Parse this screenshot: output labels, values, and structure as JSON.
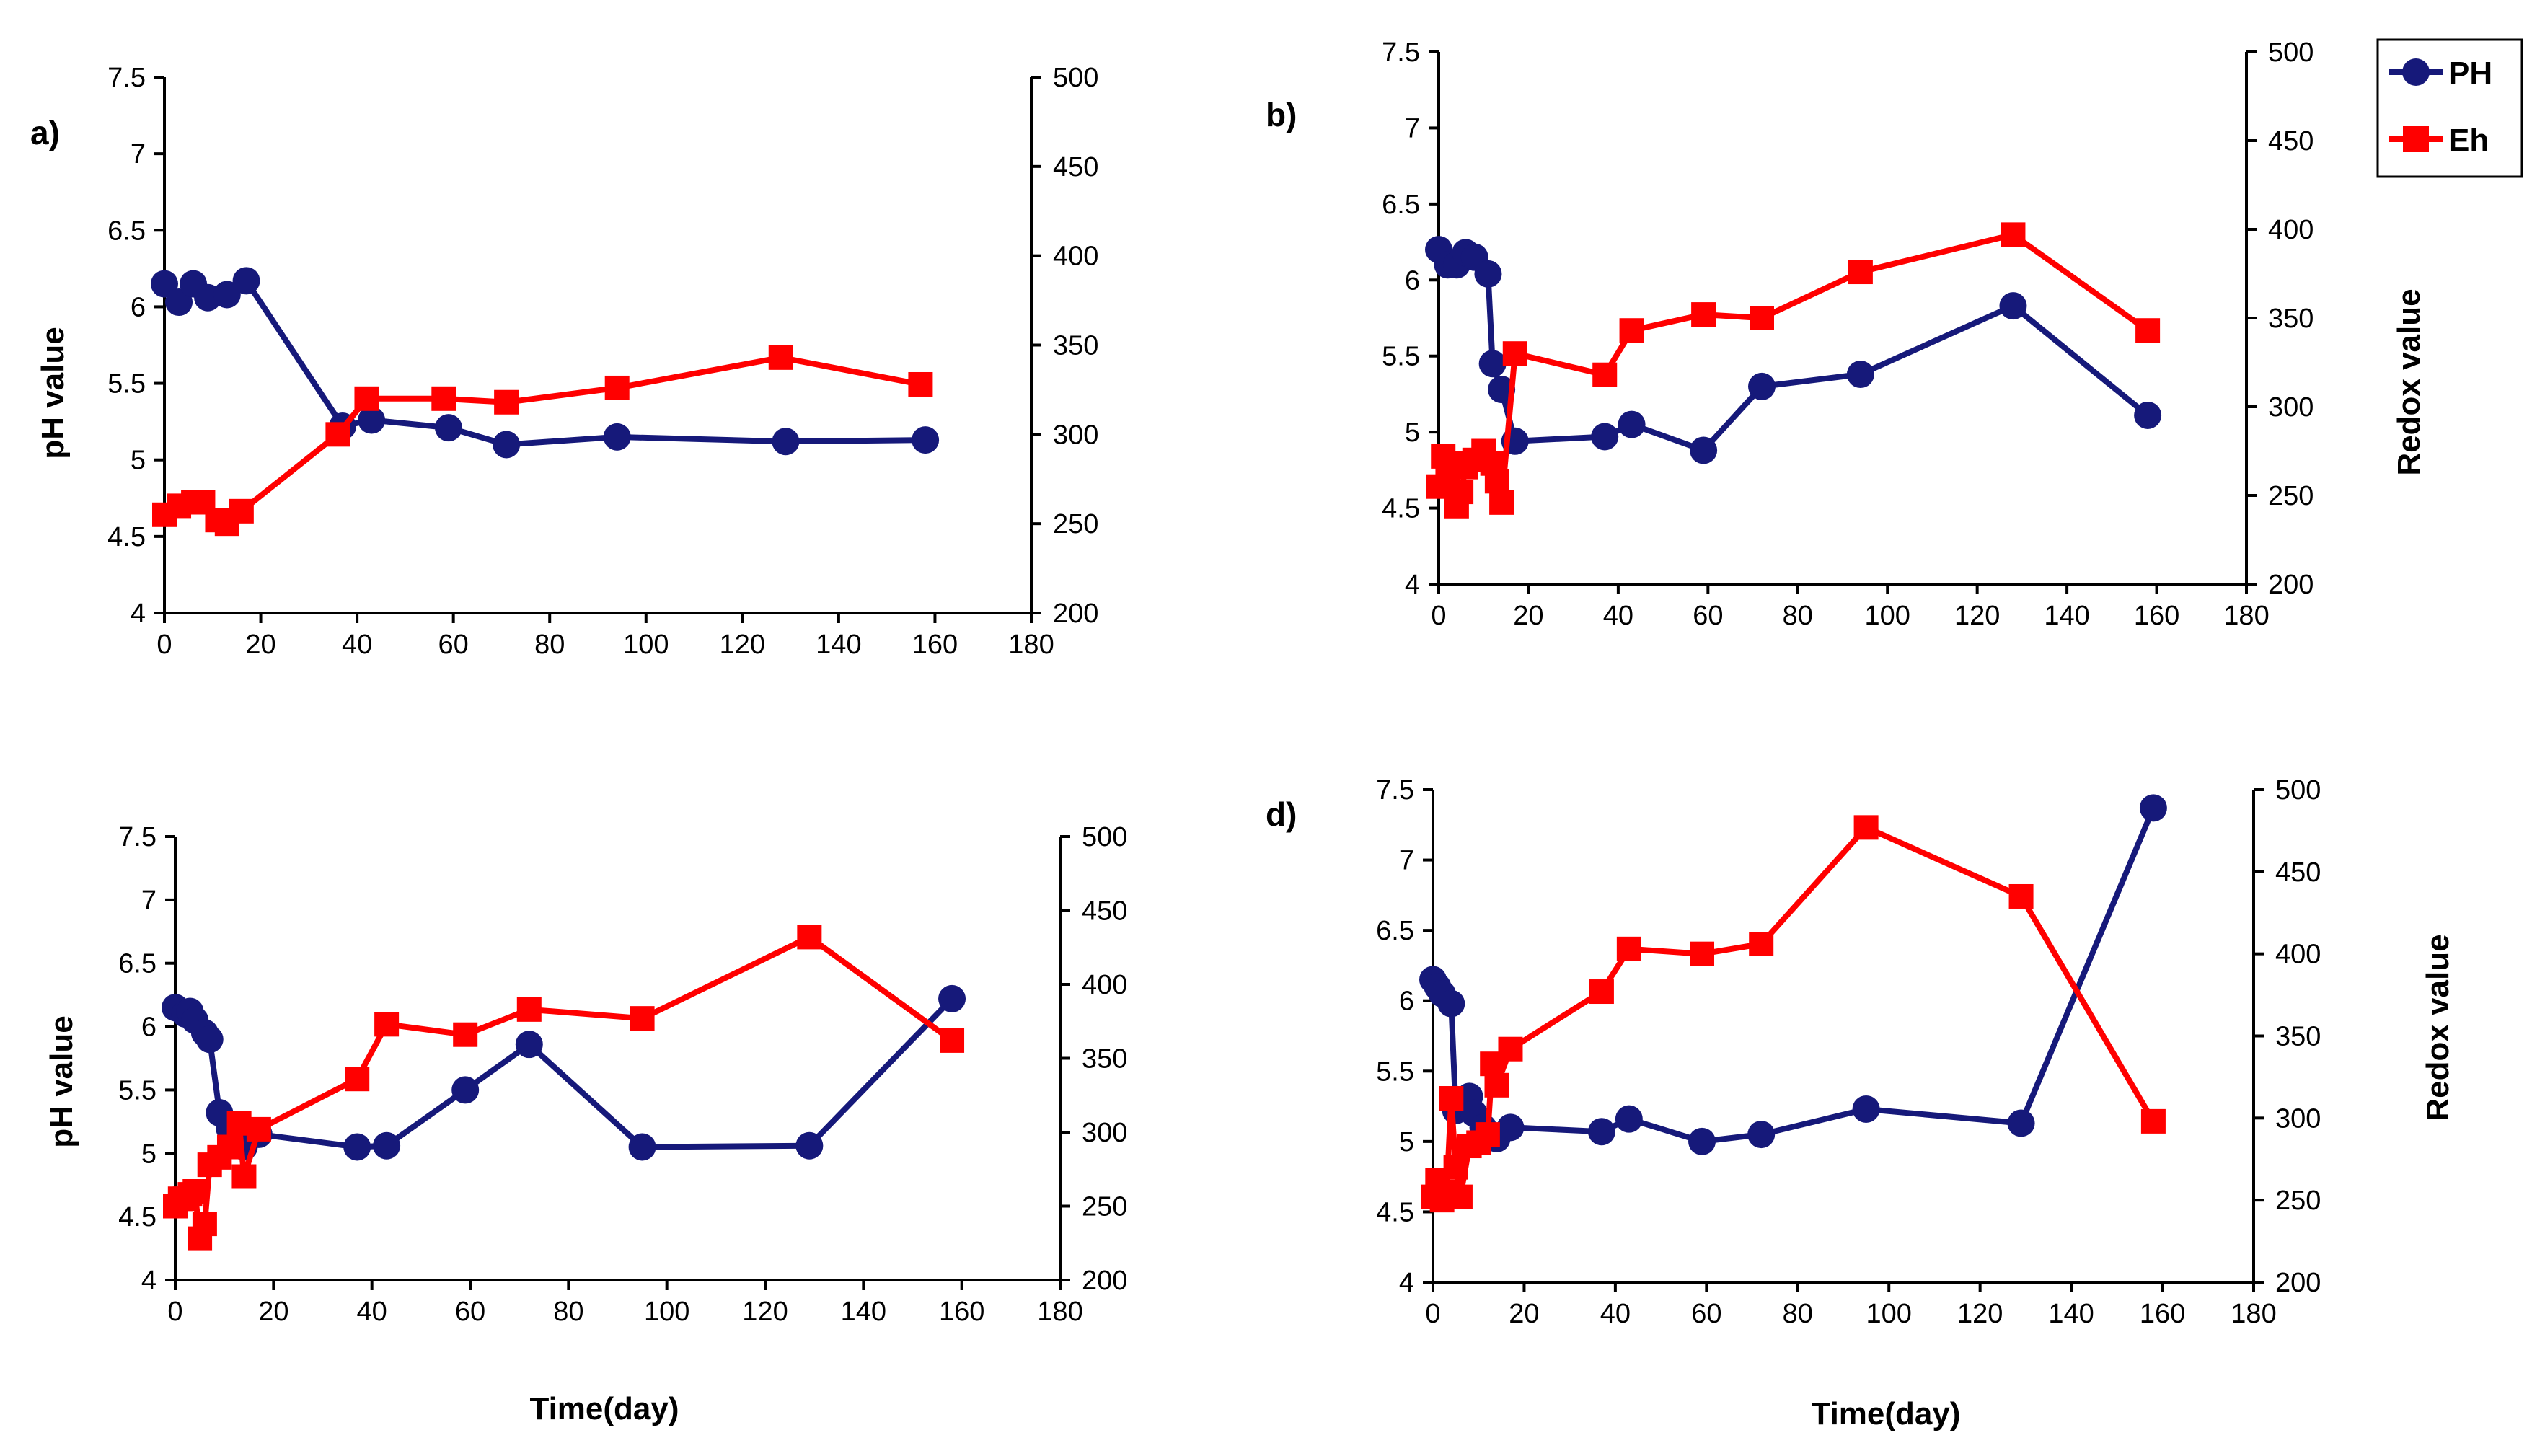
{
  "colors": {
    "ph": "#16197a",
    "eh": "#ff0000",
    "axis": "#000000"
  },
  "legend": {
    "ph_label": "PH",
    "eh_label": "Eh"
  },
  "chart_data": [
    {
      "type": "line",
      "panel_label": "a)",
      "xlabel": "",
      "ylabel": "pH value",
      "y2label": "",
      "xlim": [
        0,
        180
      ],
      "xticks": [
        0,
        20,
        40,
        60,
        80,
        100,
        120,
        140,
        160,
        180
      ],
      "ylim": [
        4,
        7.5
      ],
      "yticks": [
        4,
        4.5,
        5,
        5.5,
        6,
        6.5,
        7,
        7.5
      ],
      "y2lim": [
        200,
        500
      ],
      "y2ticks": [
        200,
        250,
        300,
        350,
        400,
        450,
        500
      ],
      "series": [
        {
          "name": "PH",
          "axis": "left",
          "marker": "circle",
          "x": [
            0,
            3,
            6,
            9,
            13,
            17,
            37,
            43,
            59,
            71,
            94,
            129,
            158
          ],
          "y": [
            6.15,
            6.03,
            6.15,
            6.06,
            6.08,
            6.17,
            5.22,
            5.26,
            5.21,
            5.1,
            5.15,
            5.12,
            5.13
          ]
        },
        {
          "name": "Eh",
          "axis": "right",
          "marker": "square",
          "x": [
            0,
            3,
            6,
            8,
            11,
            13,
            16,
            36,
            42,
            58,
            71,
            94,
            128,
            157
          ],
          "y": [
            255,
            260,
            262,
            262,
            252,
            250,
            257,
            300,
            320,
            320,
            318,
            326,
            343,
            328
          ]
        }
      ]
    },
    {
      "type": "line",
      "panel_label": "b)",
      "xlabel": "",
      "ylabel": "",
      "y2label": "Redox value",
      "xlim": [
        0,
        180
      ],
      "xticks": [
        0,
        20,
        40,
        60,
        80,
        100,
        120,
        140,
        160,
        180
      ],
      "ylim": [
        4,
        7.5
      ],
      "yticks": [
        4,
        4.5,
        5,
        5.5,
        6,
        6.5,
        7,
        7.5
      ],
      "y2lim": [
        200,
        500
      ],
      "y2ticks": [
        200,
        250,
        300,
        350,
        400,
        450,
        500
      ],
      "series": [
        {
          "name": "PH",
          "axis": "left",
          "marker": "circle",
          "x": [
            0,
            2,
            4,
            6,
            8,
            11,
            12,
            14,
            17,
            37,
            43,
            59,
            72,
            94,
            128,
            158
          ],
          "y": [
            6.2,
            6.1,
            6.1,
            6.18,
            6.15,
            6.04,
            5.45,
            5.28,
            4.94,
            4.97,
            5.05,
            4.88,
            5.3,
            5.38,
            5.83,
            5.11
          ]
        },
        {
          "name": "Eh",
          "axis": "right",
          "marker": "square",
          "x": [
            0,
            1,
            2,
            3,
            4,
            5,
            6,
            8,
            10,
            12,
            13,
            14,
            17,
            37,
            43,
            59,
            72,
            94,
            128,
            158
          ],
          "y": [
            255,
            272,
            260,
            268,
            244,
            252,
            266,
            270,
            275,
            268,
            258,
            246,
            330,
            318,
            343,
            352,
            350,
            376,
            397,
            343
          ]
        }
      ]
    },
    {
      "type": "line",
      "panel_label": "",
      "xlabel": "Time(day)",
      "ylabel": "pH value",
      "y2label": "",
      "xlim": [
        0,
        180
      ],
      "xticks": [
        0,
        20,
        40,
        60,
        80,
        100,
        120,
        140,
        160,
        180
      ],
      "ylim": [
        4,
        7.5
      ],
      "yticks": [
        4,
        4.5,
        5,
        5.5,
        6,
        6.5,
        7,
        7.5
      ],
      "y2lim": [
        200,
        500
      ],
      "y2ticks": [
        200,
        250,
        300,
        350,
        400,
        450,
        500
      ],
      "series": [
        {
          "name": "PH",
          "axis": "left",
          "marker": "circle",
          "x": [
            0,
            2,
            3,
            4,
            6,
            7,
            9,
            11,
            14,
            17,
            37,
            43,
            59,
            72,
            95,
            129,
            158
          ],
          "y": [
            6.15,
            6.1,
            6.12,
            6.05,
            5.95,
            5.9,
            5.32,
            5.2,
            5.05,
            5.15,
            5.05,
            5.06,
            5.5,
            5.86,
            5.05,
            5.06,
            6.22
          ]
        },
        {
          "name": "Eh",
          "axis": "right",
          "marker": "square",
          "x": [
            0,
            1,
            2,
            3,
            4,
            5,
            6,
            7,
            9,
            11,
            13,
            14,
            17,
            37,
            43,
            59,
            72,
            95,
            129,
            158
          ],
          "y": [
            250,
            255,
            255,
            258,
            260,
            228,
            238,
            278,
            283,
            290,
            306,
            270,
            302,
            336,
            373,
            366,
            383,
            377,
            432,
            362
          ]
        }
      ]
    },
    {
      "type": "line",
      "panel_label": "d)",
      "xlabel": "Time(day)",
      "ylabel": "",
      "y2label": "Redox value",
      "xlim": [
        0,
        180
      ],
      "xticks": [
        0,
        20,
        40,
        60,
        80,
        100,
        120,
        140,
        160,
        180
      ],
      "ylim": [
        4,
        7.5
      ],
      "yticks": [
        4,
        4.5,
        5,
        5.5,
        6,
        6.5,
        7,
        7.5
      ],
      "y2lim": [
        200,
        500
      ],
      "y2ticks": [
        200,
        250,
        300,
        350,
        400,
        450,
        500
      ],
      "series": [
        {
          "name": "PH",
          "axis": "left",
          "marker": "circle",
          "x": [
            0,
            1,
            2,
            4,
            5,
            6,
            8,
            9,
            11,
            14,
            17,
            37,
            43,
            59,
            72,
            95,
            129,
            158
          ],
          "y": [
            6.15,
            6.1,
            6.05,
            5.98,
            5.22,
            5.25,
            5.32,
            5.2,
            5.1,
            5.02,
            5.1,
            5.07,
            5.16,
            5.0,
            5.05,
            5.23,
            5.13,
            7.37
          ]
        },
        {
          "name": "Eh",
          "axis": "right",
          "marker": "square",
          "x": [
            0,
            1,
            2,
            3,
            4,
            5,
            6,
            8,
            10,
            12,
            13,
            14,
            17,
            37,
            43,
            59,
            72,
            95,
            129,
            158
          ],
          "y": [
            252,
            262,
            250,
            255,
            312,
            270,
            252,
            283,
            285,
            290,
            333,
            320,
            342,
            377,
            403,
            400,
            406,
            477,
            435,
            298
          ]
        }
      ]
    }
  ]
}
